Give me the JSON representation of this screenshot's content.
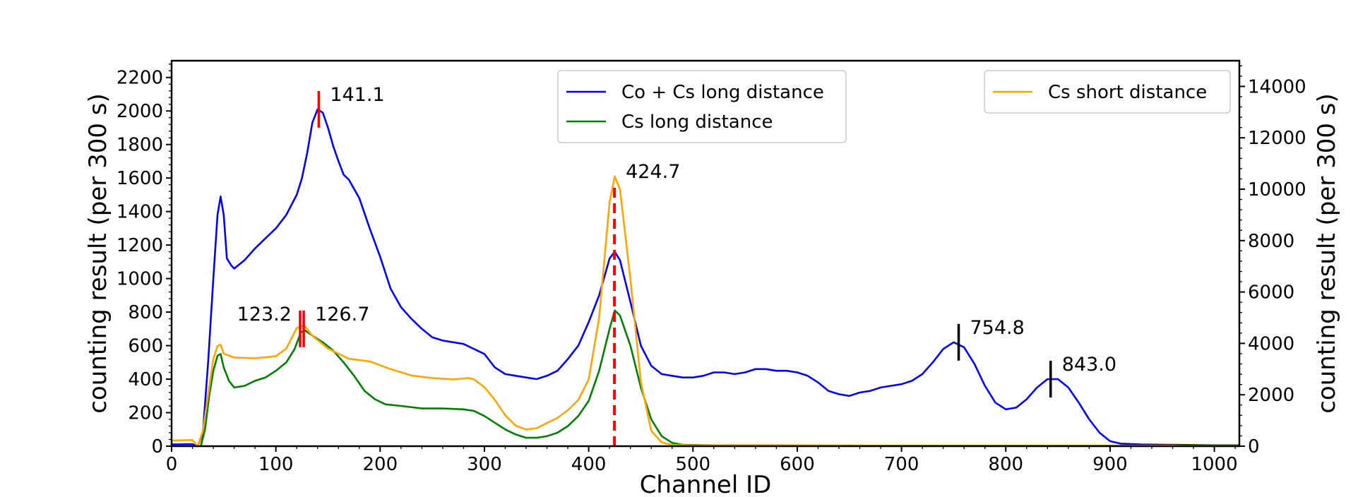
{
  "chart_data": {
    "type": "line",
    "xlabel": "Channel ID",
    "ylabel_left": "counting result (per 300 s)",
    "ylabel_right": "counting result (per 300 s)",
    "xlim": [
      0,
      1024
    ],
    "ylim_left": [
      0,
      2300
    ],
    "ylim_right": [
      0,
      15000
    ],
    "x_ticks": [
      0,
      100,
      200,
      300,
      400,
      500,
      600,
      700,
      800,
      900,
      1000
    ],
    "y_ticks_left": [
      0,
      200,
      400,
      600,
      800,
      1000,
      1200,
      1400,
      1600,
      1800,
      2000,
      2200
    ],
    "y_ticks_right": [
      0,
      2000,
      4000,
      6000,
      8000,
      10000,
      12000,
      14000
    ],
    "grid": false,
    "series": [
      {
        "name": "Co + Cs long distance",
        "axis": "left",
        "color": "#0000ff",
        "points": [
          [
            0,
            10
          ],
          [
            15,
            12
          ],
          [
            20,
            12
          ],
          [
            25,
            0
          ],
          [
            30,
            80
          ],
          [
            35,
            500
          ],
          [
            40,
            1000
          ],
          [
            44,
            1380
          ],
          [
            47,
            1490
          ],
          [
            50,
            1380
          ],
          [
            53,
            1120
          ],
          [
            57,
            1080
          ],
          [
            60,
            1060
          ],
          [
            70,
            1110
          ],
          [
            80,
            1180
          ],
          [
            90,
            1240
          ],
          [
            100,
            1300
          ],
          [
            110,
            1380
          ],
          [
            120,
            1500
          ],
          [
            125,
            1600
          ],
          [
            130,
            1750
          ],
          [
            135,
            1930
          ],
          [
            140,
            2010
          ],
          [
            145,
            1990
          ],
          [
            150,
            1900
          ],
          [
            155,
            1790
          ],
          [
            160,
            1700
          ],
          [
            165,
            1620
          ],
          [
            170,
            1590
          ],
          [
            180,
            1480
          ],
          [
            190,
            1300
          ],
          [
            200,
            1130
          ],
          [
            210,
            940
          ],
          [
            220,
            830
          ],
          [
            230,
            760
          ],
          [
            240,
            700
          ],
          [
            250,
            650
          ],
          [
            260,
            630
          ],
          [
            270,
            620
          ],
          [
            280,
            610
          ],
          [
            290,
            580
          ],
          [
            300,
            550
          ],
          [
            310,
            470
          ],
          [
            320,
            430
          ],
          [
            330,
            420
          ],
          [
            340,
            410
          ],
          [
            350,
            400
          ],
          [
            360,
            420
          ],
          [
            370,
            450
          ],
          [
            380,
            520
          ],
          [
            390,
            600
          ],
          [
            400,
            740
          ],
          [
            410,
            900
          ],
          [
            420,
            1120
          ],
          [
            425,
            1160
          ],
          [
            430,
            1110
          ],
          [
            440,
            860
          ],
          [
            450,
            600
          ],
          [
            460,
            480
          ],
          [
            470,
            430
          ],
          [
            480,
            420
          ],
          [
            490,
            410
          ],
          [
            500,
            410
          ],
          [
            510,
            420
          ],
          [
            520,
            440
          ],
          [
            530,
            440
          ],
          [
            540,
            430
          ],
          [
            550,
            440
          ],
          [
            560,
            460
          ],
          [
            570,
            460
          ],
          [
            580,
            450
          ],
          [
            590,
            450
          ],
          [
            600,
            440
          ],
          [
            610,
            420
          ],
          [
            620,
            380
          ],
          [
            630,
            330
          ],
          [
            640,
            310
          ],
          [
            650,
            300
          ],
          [
            660,
            320
          ],
          [
            670,
            330
          ],
          [
            680,
            350
          ],
          [
            690,
            360
          ],
          [
            700,
            370
          ],
          [
            710,
            390
          ],
          [
            720,
            430
          ],
          [
            730,
            500
          ],
          [
            740,
            580
          ],
          [
            750,
            620
          ],
          [
            760,
            590
          ],
          [
            770,
            490
          ],
          [
            780,
            360
          ],
          [
            790,
            260
          ],
          [
            800,
            220
          ],
          [
            810,
            230
          ],
          [
            820,
            280
          ],
          [
            830,
            350
          ],
          [
            840,
            400
          ],
          [
            850,
            400
          ],
          [
            860,
            350
          ],
          [
            870,
            260
          ],
          [
            880,
            160
          ],
          [
            890,
            80
          ],
          [
            900,
            30
          ],
          [
            910,
            15
          ],
          [
            930,
            10
          ],
          [
            960,
            8
          ],
          [
            1000,
            5
          ],
          [
            1024,
            5
          ]
        ]
      },
      {
        "name": "Cs long distance",
        "axis": "left",
        "color": "#008000",
        "points": [
          [
            28,
            0
          ],
          [
            32,
            100
          ],
          [
            36,
            300
          ],
          [
            40,
            450
          ],
          [
            44,
            540
          ],
          [
            47,
            550
          ],
          [
            50,
            470
          ],
          [
            55,
            390
          ],
          [
            60,
            350
          ],
          [
            70,
            360
          ],
          [
            80,
            390
          ],
          [
            90,
            410
          ],
          [
            100,
            450
          ],
          [
            110,
            500
          ],
          [
            118,
            580
          ],
          [
            124,
            680
          ],
          [
            128,
            690
          ],
          [
            135,
            660
          ],
          [
            145,
            620
          ],
          [
            155,
            570
          ],
          [
            165,
            500
          ],
          [
            175,
            420
          ],
          [
            185,
            330
          ],
          [
            195,
            280
          ],
          [
            205,
            250
          ],
          [
            220,
            240
          ],
          [
            240,
            225
          ],
          [
            260,
            225
          ],
          [
            280,
            220
          ],
          [
            290,
            210
          ],
          [
            300,
            180
          ],
          [
            310,
            140
          ],
          [
            320,
            100
          ],
          [
            330,
            70
          ],
          [
            340,
            50
          ],
          [
            350,
            50
          ],
          [
            360,
            60
          ],
          [
            370,
            80
          ],
          [
            380,
            120
          ],
          [
            390,
            180
          ],
          [
            400,
            270
          ],
          [
            410,
            450
          ],
          [
            420,
            700
          ],
          [
            425,
            810
          ],
          [
            430,
            780
          ],
          [
            440,
            600
          ],
          [
            450,
            350
          ],
          [
            460,
            160
          ],
          [
            470,
            60
          ],
          [
            480,
            20
          ],
          [
            490,
            8
          ],
          [
            520,
            5
          ],
          [
            700,
            3
          ],
          [
            1024,
            3
          ]
        ]
      },
      {
        "name": "Cs short distance",
        "axis": "right",
        "color": "#ffa500",
        "points": [
          [
            0,
            220
          ],
          [
            20,
            240
          ],
          [
            25,
            0
          ],
          [
            30,
            600
          ],
          [
            35,
            2000
          ],
          [
            40,
            3400
          ],
          [
            44,
            3900
          ],
          [
            47,
            3950
          ],
          [
            50,
            3600
          ],
          [
            60,
            3450
          ],
          [
            80,
            3420
          ],
          [
            100,
            3500
          ],
          [
            110,
            3800
          ],
          [
            120,
            4600
          ],
          [
            127,
            4700
          ],
          [
            135,
            4300
          ],
          [
            150,
            3800
          ],
          [
            170,
            3400
          ],
          [
            190,
            3300
          ],
          [
            210,
            3000
          ],
          [
            230,
            2750
          ],
          [
            250,
            2650
          ],
          [
            270,
            2600
          ],
          [
            285,
            2650
          ],
          [
            290,
            2600
          ],
          [
            300,
            2300
          ],
          [
            310,
            1800
          ],
          [
            320,
            1200
          ],
          [
            330,
            800
          ],
          [
            340,
            650
          ],
          [
            350,
            700
          ],
          [
            360,
            900
          ],
          [
            370,
            1100
          ],
          [
            380,
            1400
          ],
          [
            390,
            1800
          ],
          [
            400,
            2600
          ],
          [
            410,
            5000
          ],
          [
            420,
            9500
          ],
          [
            425,
            10500
          ],
          [
            430,
            10000
          ],
          [
            440,
            6500
          ],
          [
            450,
            2500
          ],
          [
            460,
            600
          ],
          [
            470,
            150
          ],
          [
            480,
            50
          ],
          [
            500,
            30
          ],
          [
            700,
            10
          ],
          [
            900,
            10
          ],
          [
            960,
            20
          ],
          [
            970,
            5
          ],
          [
            1024,
            5
          ]
        ]
      }
    ],
    "annotations": [
      {
        "label": "141.1",
        "x": 141.1,
        "axis": "left",
        "y": 2010,
        "color": "#ff0000",
        "style": "solid"
      },
      {
        "label": "123.2",
        "x": 123.2,
        "axis": "left",
        "y": 700,
        "color": "#ff0000",
        "style": "solid",
        "text_side": "left"
      },
      {
        "label": "126.7",
        "x": 126.7,
        "axis": "left",
        "y": 700,
        "color": "#ff0000",
        "style": "solid"
      },
      {
        "label": "424.7",
        "x": 424.7,
        "axis": "left",
        "color": "#ff0000",
        "style": "dashed"
      },
      {
        "label": "754.8",
        "x": 754.8,
        "axis": "left",
        "y": 620,
        "color": "#000000",
        "style": "solid"
      },
      {
        "label": "843.0",
        "x": 843.0,
        "axis": "left",
        "y": 400,
        "color": "#000000",
        "style": "solid"
      }
    ],
    "legends": [
      {
        "placement": "top-center",
        "entries": [
          "Co + Cs long distance",
          "Cs long distance"
        ]
      },
      {
        "placement": "top-right",
        "entries": [
          "Cs short distance"
        ]
      }
    ]
  }
}
